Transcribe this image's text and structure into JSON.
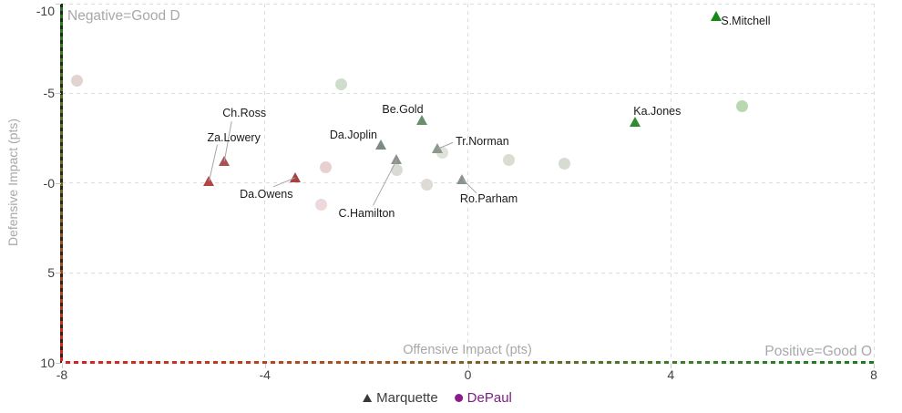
{
  "chart_data": {
    "type": "scatter",
    "title": "",
    "xlabel": "Offensive Impact (pts)",
    "ylabel": "Defensive Impact (pts)",
    "xlim": [
      -8,
      8
    ],
    "ylim": [
      -10,
      10
    ],
    "y_axis_inverted": true,
    "grid": true,
    "legend_position": "bottom",
    "x_ticks": [
      {
        "value": -8,
        "label": "-8"
      },
      {
        "value": -4,
        "label": "-4"
      },
      {
        "value": 0,
        "label": "0"
      },
      {
        "value": 4,
        "label": "4"
      },
      {
        "value": 8,
        "label": "8"
      }
    ],
    "y_ticks": [
      {
        "value": -10,
        "label": "-10"
      },
      {
        "value": -5,
        "label": "-5"
      },
      {
        "value": 0,
        "label": "-0"
      },
      {
        "value": 5,
        "label": "5"
      },
      {
        "value": 10,
        "label": "10"
      }
    ],
    "annotations": {
      "top_left": "Negative=Good D",
      "bottom_right": "Positive=Good O"
    },
    "axis_gradient": {
      "good": "#1f7a1f",
      "mid": "#6f6626",
      "bad": "#d42222"
    },
    "series": [
      {
        "name": "Marquette",
        "marker": "triangle",
        "legend_color": "#383838",
        "label_color": "#3c3c3c",
        "points": [
          {
            "label": "S.Mitchell",
            "x": 4.9,
            "y": -9.3,
            "color": "#168a16",
            "label_dx": 5,
            "label_dy": -2
          },
          {
            "label": "Ka.Jones",
            "x": 3.3,
            "y": -3.4,
            "color": "#2e8b2e",
            "label_dx": -2,
            "label_dy": -19
          },
          {
            "label": "Be.Gold",
            "x": -0.9,
            "y": -3.5,
            "color": "#678f6d",
            "label_dx": -44,
            "label_dy": -19
          },
          {
            "label": "Da.Joplin",
            "x": -1.7,
            "y": -2.1,
            "color": "#7d8b7f",
            "label_dx": -57,
            "label_dy": -18
          },
          {
            "label": "Tr.Norman",
            "x": -0.6,
            "y": -1.9,
            "color": "#8a998c",
            "label_dx": 20,
            "label_dy": -15,
            "leader": [
              17,
              -7
            ]
          },
          {
            "label": "C.Hamilton",
            "x": -1.4,
            "y": -1.3,
            "color": "#8b938d",
            "label_dx": -64,
            "label_dy": 52,
            "leader": [
              -26,
              50
            ]
          },
          {
            "label": "Ch.Ross",
            "x": -4.8,
            "y": -1.2,
            "color": "#a85252",
            "label_dx": -2,
            "label_dy": -60,
            "leader": [
              8,
              -44
            ]
          },
          {
            "label": "Da.Owens",
            "x": -3.4,
            "y": -0.3,
            "color": "#a84040",
            "label_dx": -61,
            "label_dy": 11,
            "leader": [
              -24,
              10
            ]
          },
          {
            "label": "Ro.Parham",
            "x": -0.1,
            "y": -0.2,
            "color": "#8b9292",
            "label_dx": -3,
            "label_dy": 14,
            "leader": [
              15,
              15
            ]
          },
          {
            "label": "Za.Lowery",
            "x": -5.1,
            "y": -0.1,
            "color": "#b24545",
            "label_dx": -2,
            "label_dy": -55,
            "leader": [
              9,
              -40
            ]
          }
        ]
      },
      {
        "name": "DePaul",
        "marker": "circle",
        "legend_color": "#8b1a8b",
        "label_color": "#7f1f86",
        "points": [
          {
            "x": -7.7,
            "y": -5.7,
            "color": "#e2d3d3"
          },
          {
            "x": -2.5,
            "y": -5.5,
            "color": "#cfdecb"
          },
          {
            "x": -2.8,
            "y": -0.9,
            "color": "#e8cfd0"
          },
          {
            "x": -2.9,
            "y": 1.2,
            "color": "#edd9da"
          },
          {
            "x": -1.4,
            "y": -0.7,
            "color": "#dbdbd6"
          },
          {
            "x": -0.8,
            "y": 0.1,
            "color": "#dedad6"
          },
          {
            "x": -0.5,
            "y": -1.7,
            "color": "#dfe2da"
          },
          {
            "x": 0.8,
            "y": -1.3,
            "color": "#d9ded3"
          },
          {
            "x": 1.9,
            "y": -1.1,
            "color": "#d7dcd2"
          },
          {
            "x": 5.4,
            "y": -4.3,
            "color": "#b9d8b1"
          }
        ]
      }
    ]
  }
}
